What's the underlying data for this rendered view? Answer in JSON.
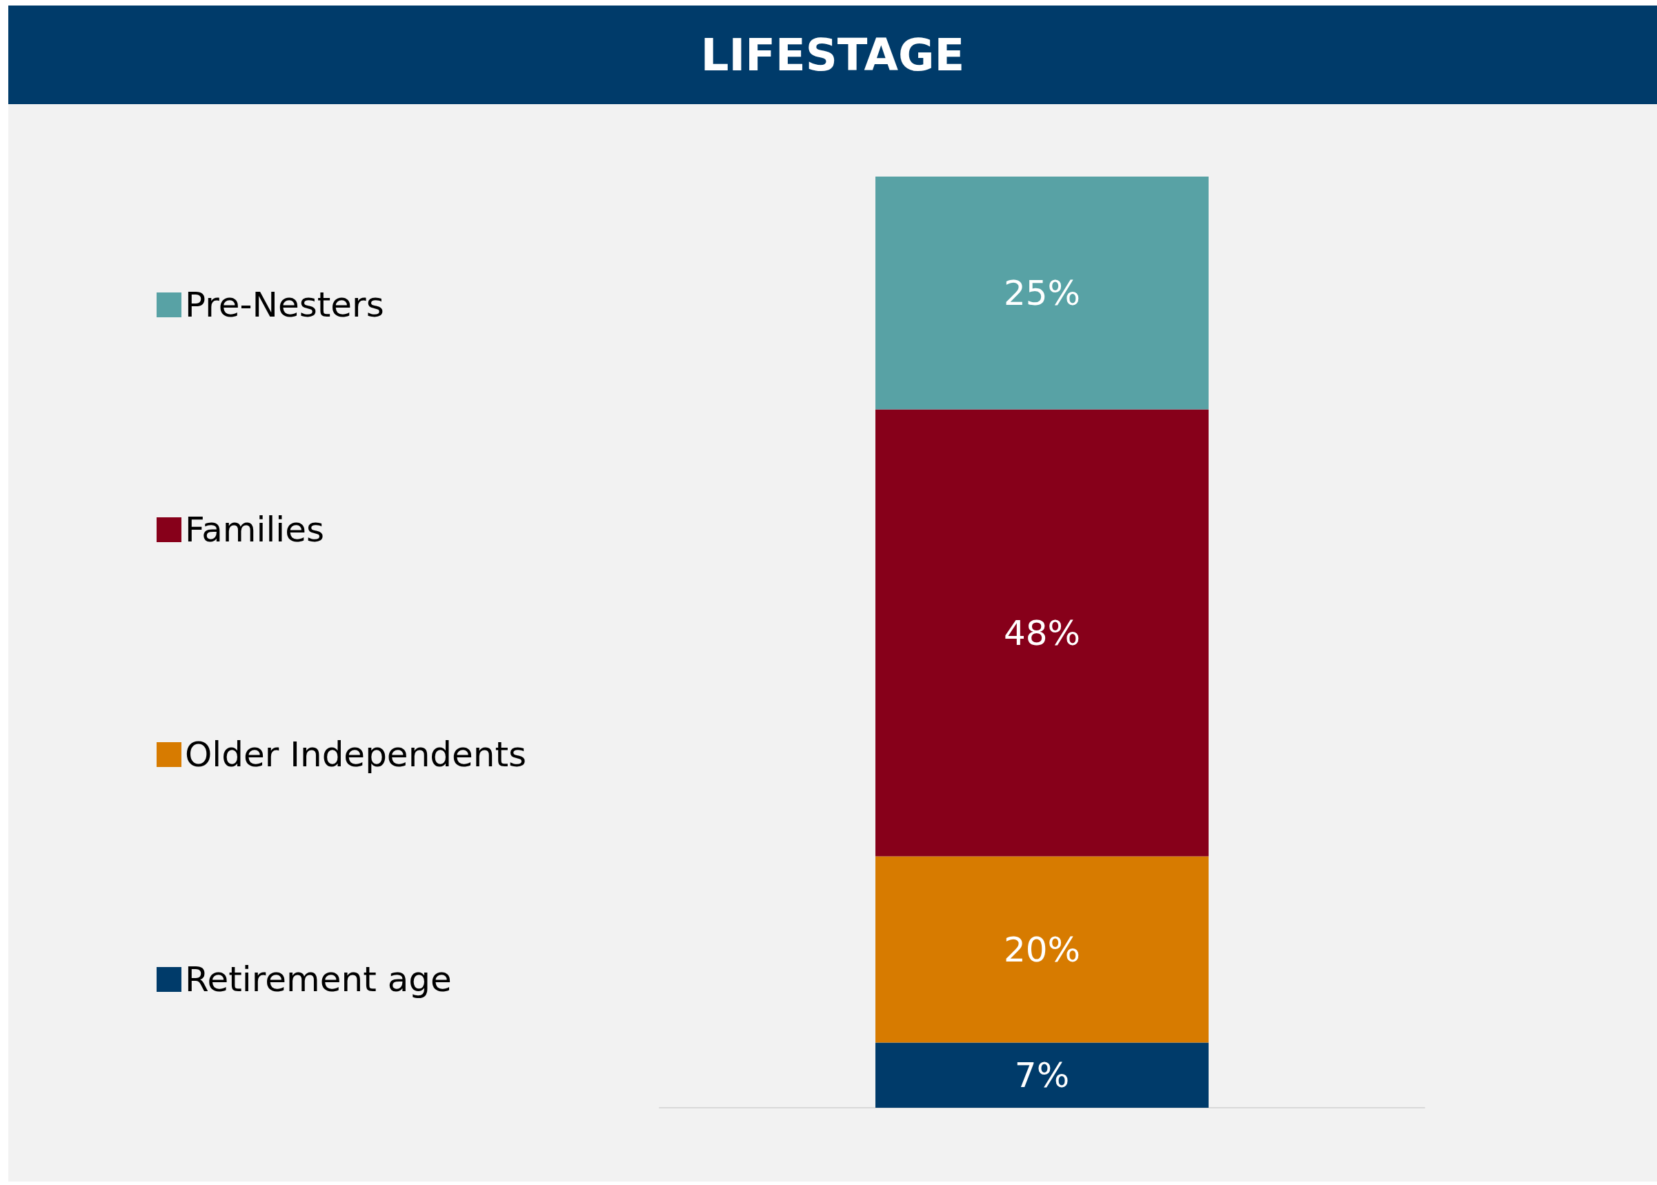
{
  "chart_data": {
    "type": "bar",
    "title": "LIFESTAGE",
    "categories": [
      null
    ],
    "stacked": true,
    "legend": "left",
    "series": [
      {
        "name": "Retirement age",
        "color": "#003b6a",
        "values": [
          7
        ],
        "value_labels": [
          "7%"
        ]
      },
      {
        "name": "Older Independents",
        "color": "#d77b00",
        "values": [
          20
        ],
        "value_labels": [
          "20%"
        ]
      },
      {
        "name": "Families",
        "color": "#87001a",
        "values": [
          48
        ],
        "value_labels": [
          "48%"
        ]
      },
      {
        "name": "Pre-Nesters",
        "color": "#58a2a5",
        "values": [
          25
        ],
        "value_labels": [
          "25%"
        ]
      }
    ]
  }
}
